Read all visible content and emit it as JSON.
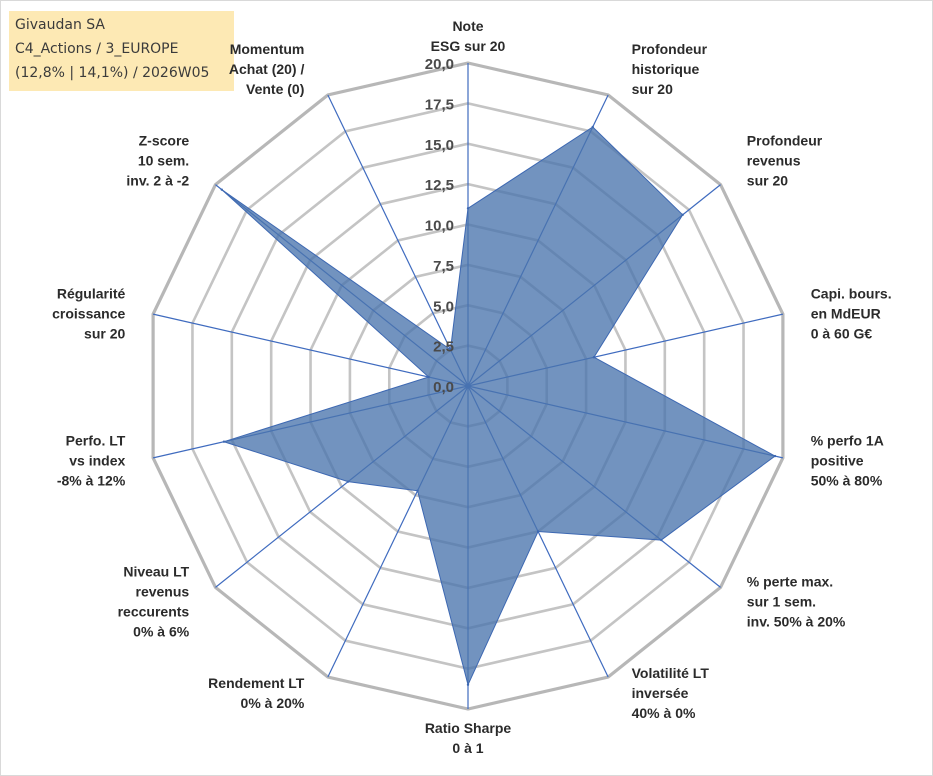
{
  "header": {
    "line1": "Givaudan SA",
    "line2": "C4_Actions / 3_EUROPE",
    "line3": "(12,8% | 14,1%) / 2026W05"
  },
  "colors": {
    "title_box": "#fde9b4",
    "series_fill": "#4a74ad",
    "series_line": "#3d68b2",
    "grid": "#bfbfbf",
    "spoke": "#3f6bbf"
  },
  "chart_data": {
    "type": "radar",
    "rmin": 0,
    "rmax": 20,
    "ticks": [
      "0,0",
      "2,5",
      "5,0",
      "7,5",
      "10,0",
      "12,5",
      "15,0",
      "17,5",
      "20,0"
    ],
    "categories": [
      [
        "Note",
        "ESG sur 20"
      ],
      [
        "Profondeur",
        "historique",
        "sur 20"
      ],
      [
        "Profondeur",
        "revenus",
        "sur 20"
      ],
      [
        "Capi. bours.",
        "en MdEUR",
        "0 à 60 G€"
      ],
      [
        "% perfo 1A",
        "positive",
        "50% à 80%"
      ],
      [
        "% perte max.",
        "sur 1 sem.",
        "inv. 50% à 20%"
      ],
      [
        "Volatilité LT",
        "inversée",
        "40% à 0%"
      ],
      [
        "Ratio Sharpe",
        "0 à 1"
      ],
      [
        "Rendement LT",
        "0% à 20%"
      ],
      [
        "Niveau LT",
        "revenus",
        "reccurents",
        "0% à 6%"
      ],
      [
        "Perfo. LT",
        "vs index",
        "-8% à 12%"
      ],
      [
        "Régularité",
        "croissance",
        "sur 20"
      ],
      [
        "Z-score",
        "10 sem.",
        "inv. 2 à -2"
      ],
      [
        "Momentum",
        "Achat (20) /",
        "Vente (0)"
      ]
    ],
    "values": [
      11.0,
      17.8,
      17.0,
      8.0,
      19.5,
      15.3,
      10.0,
      18.5,
      7.2,
      9.5,
      15.5,
      2.5,
      19.5,
      2.5
    ],
    "grid": true,
    "legend": "none"
  }
}
